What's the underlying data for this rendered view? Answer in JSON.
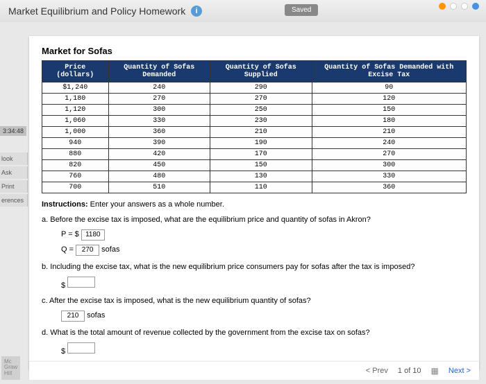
{
  "header": {
    "title": "Market Equilibrium and Policy Homework",
    "saved": "Saved"
  },
  "leftTabs": {
    "timer": "3:34:48",
    "items": [
      "look",
      "Ask",
      "Print",
      "erences"
    ]
  },
  "logo": {
    "l1": "Mc",
    "l2": "Graw",
    "l3": "Hill"
  },
  "table": {
    "title": "Market for Sofas",
    "headers": [
      "Price (dollars)",
      "Quantity of Sofas Demanded",
      "Quantity of Sofas Supplied",
      "Quantity of Sofas Demanded with Excise Tax"
    ],
    "rows": [
      [
        "$1,240",
        "240",
        "290",
        "90"
      ],
      [
        "1,180",
        "270",
        "270",
        "120"
      ],
      [
        "1,120",
        "300",
        "250",
        "150"
      ],
      [
        "1,060",
        "330",
        "230",
        "180"
      ],
      [
        "1,000",
        "360",
        "210",
        "210"
      ],
      [
        "940",
        "390",
        "190",
        "240"
      ],
      [
        "880",
        "420",
        "170",
        "270"
      ],
      [
        "820",
        "450",
        "150",
        "300"
      ],
      [
        "760",
        "480",
        "130",
        "330"
      ],
      [
        "700",
        "510",
        "110",
        "360"
      ]
    ]
  },
  "instructions": {
    "label": "Instructions:",
    "text": " Enter your answers as a whole number."
  },
  "questions": {
    "a": {
      "text": "a. Before the excise tax is imposed, what are the equilibrium price and quantity of sofas in Akron?",
      "p_prefix": "P = $",
      "p_value": "1180",
      "q_prefix": "Q =",
      "q_value": "270",
      "q_unit": "sofas"
    },
    "b": {
      "text": "b. Including the excise tax, what is the new equilibrium price consumers pay for sofas after the tax is imposed?",
      "prefix": "$",
      "value": ""
    },
    "c": {
      "text": "c. After the excise tax is imposed, what is the new equilibrium quantity of sofas?",
      "value": "210",
      "unit": "sofas"
    },
    "d": {
      "text": "d. What is the total amount of revenue collected by the government from the excise tax on sofas?",
      "prefix": "$",
      "value": ""
    }
  },
  "footer": {
    "prev": "< Prev",
    "indicator": "1 of 10",
    "next": "Next >"
  }
}
